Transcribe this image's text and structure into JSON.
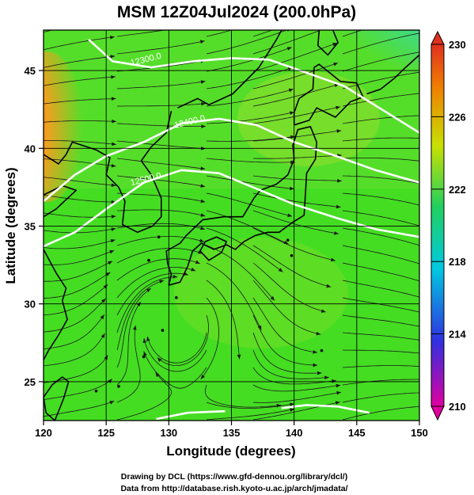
{
  "title": "MSM 12Z04Jul2024 (200.0hPa)",
  "x_axis": {
    "label": "Longitude (degrees)",
    "range": [
      120,
      150
    ],
    "ticks": [
      "120",
      "125",
      "130",
      "135",
      "140",
      "145",
      "150"
    ]
  },
  "y_axis": {
    "label": "Latitude  (degrees)",
    "range": [
      22.5,
      47.6
    ],
    "ticks": [
      "25",
      "30",
      "35",
      "40",
      "45"
    ]
  },
  "colorbar": {
    "range": [
      210,
      230
    ],
    "ticks": [
      "210",
      "214",
      "218",
      "222",
      "226",
      "230"
    ],
    "colors": [
      "#e000a0",
      "#3030e0",
      "#00c8e0",
      "#20d060",
      "#c8e000",
      "#f08000",
      "#e03020"
    ]
  },
  "contours": {
    "labels": [
      "12300.0",
      "12400.0",
      "12500.0"
    ],
    "color": "#ffffff"
  },
  "field_colors": {
    "background": "#44dd22",
    "cool": "#22dd99",
    "warm": "#e89020",
    "low": "#28c8e8"
  },
  "credits": {
    "line1": "Drawing by DCL (https://www.gfd-dennou.org/library/dcl/)",
    "line2": "Data from http://database.rish.kyoto-u.ac.jp/arch/jmadata/"
  }
}
